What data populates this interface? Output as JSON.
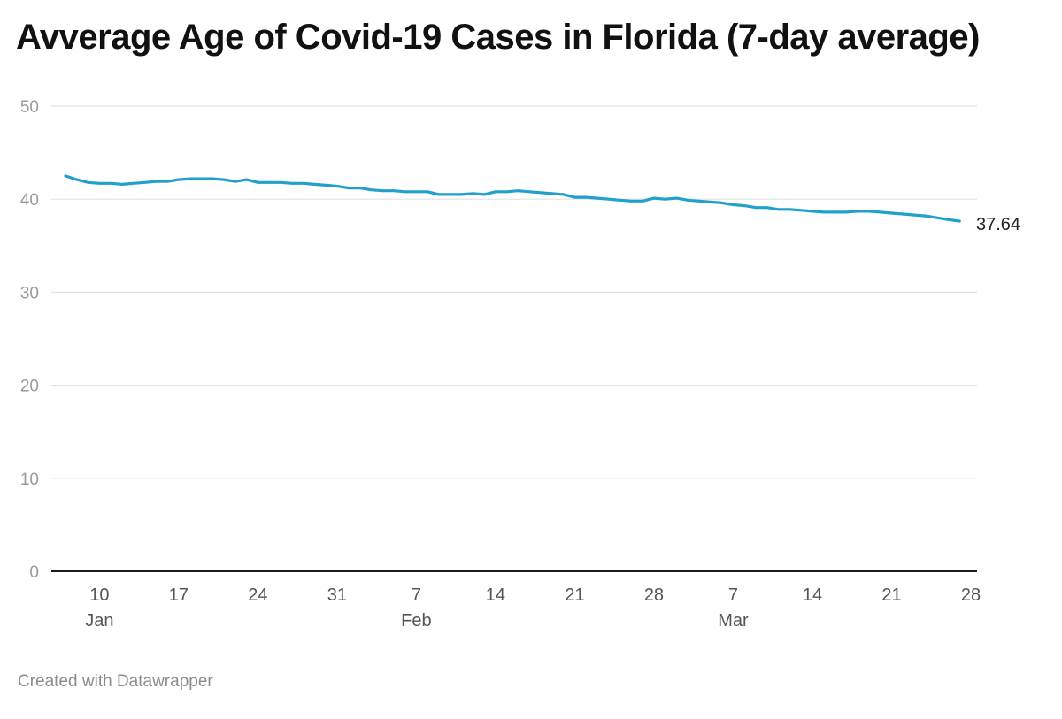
{
  "title": "Avverage Age of Covid-19 Cases in Florida (7-day average)",
  "footer": "Created with Datawrapper",
  "chart_data": {
    "type": "line",
    "title": "Avverage Age of Covid-19 Cases in Florida (7-day average)",
    "xlabel": "",
    "ylabel": "",
    "ylim": [
      0,
      50
    ],
    "yticks": [
      0,
      10,
      20,
      30,
      40,
      50
    ],
    "xlim": [
      "2021-01-07",
      "2021-03-28"
    ],
    "xticks": [
      {
        "date": "2021-01-10",
        "label": "10",
        "month": "Jan"
      },
      {
        "date": "2021-01-17",
        "label": "17",
        "month": ""
      },
      {
        "date": "2021-01-24",
        "label": "24",
        "month": ""
      },
      {
        "date": "2021-01-31",
        "label": "31",
        "month": ""
      },
      {
        "date": "2021-02-07",
        "label": "7",
        "month": "Feb"
      },
      {
        "date": "2021-02-14",
        "label": "14",
        "month": ""
      },
      {
        "date": "2021-02-21",
        "label": "21",
        "month": ""
      },
      {
        "date": "2021-02-28",
        "label": "28",
        "month": ""
      },
      {
        "date": "2021-03-07",
        "label": "7",
        "month": "Mar"
      },
      {
        "date": "2021-03-14",
        "label": "14",
        "month": ""
      },
      {
        "date": "2021-03-21",
        "label": "21",
        "month": ""
      },
      {
        "date": "2021-03-28",
        "label": "28",
        "month": ""
      }
    ],
    "grid": true,
    "series": [
      {
        "color": "#21a0cc",
        "end_label": "37.64",
        "points": [
          [
            "2021-01-07",
            42.5
          ],
          [
            "2021-01-08",
            42.1
          ],
          [
            "2021-01-09",
            41.8
          ],
          [
            "2021-01-10",
            41.7
          ],
          [
            "2021-01-11",
            41.7
          ],
          [
            "2021-01-12",
            41.6
          ],
          [
            "2021-01-13",
            41.7
          ],
          [
            "2021-01-14",
            41.8
          ],
          [
            "2021-01-15",
            41.9
          ],
          [
            "2021-01-16",
            41.9
          ],
          [
            "2021-01-17",
            42.1
          ],
          [
            "2021-01-18",
            42.2
          ],
          [
            "2021-01-19",
            42.2
          ],
          [
            "2021-01-20",
            42.2
          ],
          [
            "2021-01-21",
            42.1
          ],
          [
            "2021-01-22",
            41.9
          ],
          [
            "2021-01-23",
            42.1
          ],
          [
            "2021-01-24",
            41.8
          ],
          [
            "2021-01-25",
            41.8
          ],
          [
            "2021-01-26",
            41.8
          ],
          [
            "2021-01-27",
            41.7
          ],
          [
            "2021-01-28",
            41.7
          ],
          [
            "2021-01-29",
            41.6
          ],
          [
            "2021-01-30",
            41.5
          ],
          [
            "2021-01-31",
            41.4
          ],
          [
            "2021-02-01",
            41.2
          ],
          [
            "2021-02-02",
            41.2
          ],
          [
            "2021-02-03",
            41.0
          ],
          [
            "2021-02-04",
            40.9
          ],
          [
            "2021-02-05",
            40.9
          ],
          [
            "2021-02-06",
            40.8
          ],
          [
            "2021-02-07",
            40.8
          ],
          [
            "2021-02-08",
            40.8
          ],
          [
            "2021-02-09",
            40.5
          ],
          [
            "2021-02-10",
            40.5
          ],
          [
            "2021-02-11",
            40.5
          ],
          [
            "2021-02-12",
            40.6
          ],
          [
            "2021-02-13",
            40.5
          ],
          [
            "2021-02-14",
            40.8
          ],
          [
            "2021-02-15",
            40.8
          ],
          [
            "2021-02-16",
            40.9
          ],
          [
            "2021-02-17",
            40.8
          ],
          [
            "2021-02-18",
            40.7
          ],
          [
            "2021-02-19",
            40.6
          ],
          [
            "2021-02-20",
            40.5
          ],
          [
            "2021-02-21",
            40.2
          ],
          [
            "2021-02-22",
            40.2
          ],
          [
            "2021-02-23",
            40.1
          ],
          [
            "2021-02-24",
            40.0
          ],
          [
            "2021-02-25",
            39.9
          ],
          [
            "2021-02-26",
            39.8
          ],
          [
            "2021-02-27",
            39.8
          ],
          [
            "2021-02-28",
            40.1
          ],
          [
            "2021-03-01",
            40.0
          ],
          [
            "2021-03-02",
            40.1
          ],
          [
            "2021-03-03",
            39.9
          ],
          [
            "2021-03-04",
            39.8
          ],
          [
            "2021-03-05",
            39.7
          ],
          [
            "2021-03-06",
            39.6
          ],
          [
            "2021-03-07",
            39.4
          ],
          [
            "2021-03-08",
            39.3
          ],
          [
            "2021-03-09",
            39.1
          ],
          [
            "2021-03-10",
            39.1
          ],
          [
            "2021-03-11",
            38.9
          ],
          [
            "2021-03-12",
            38.9
          ],
          [
            "2021-03-13",
            38.8
          ],
          [
            "2021-03-14",
            38.7
          ],
          [
            "2021-03-15",
            38.6
          ],
          [
            "2021-03-16",
            38.6
          ],
          [
            "2021-03-17",
            38.6
          ],
          [
            "2021-03-18",
            38.7
          ],
          [
            "2021-03-19",
            38.7
          ],
          [
            "2021-03-20",
            38.6
          ],
          [
            "2021-03-21",
            38.5
          ],
          [
            "2021-03-22",
            38.4
          ],
          [
            "2021-03-23",
            38.3
          ],
          [
            "2021-03-24",
            38.2
          ],
          [
            "2021-03-25",
            38.0
          ],
          [
            "2021-03-26",
            37.8
          ],
          [
            "2021-03-27",
            37.64
          ]
        ]
      }
    ]
  }
}
